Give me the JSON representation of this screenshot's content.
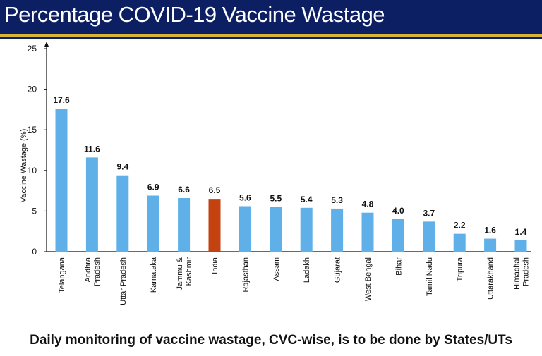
{
  "header": {
    "title": "Percentage COVID-19 Vaccine Wastage"
  },
  "footer": {
    "note": "Daily monitoring of vaccine wastage, CVC-wise, is to be done by States/UTs"
  },
  "colors": {
    "bar": "#5fb0e8",
    "highlight": "#c4420f",
    "header_bg": "#0d1f63",
    "header_rule": "#d9b43a"
  },
  "chart_data": {
    "type": "bar",
    "title": "",
    "xlabel": "",
    "ylabel": "Vaccine Wastage (%)",
    "ylim": [
      0,
      25
    ],
    "yticks": [
      0,
      5,
      10,
      15,
      20,
      25
    ],
    "grid": false,
    "highlight": "India",
    "categories": [
      "Telangana",
      "Andhra Pradesh",
      "Uttar Pradesh",
      "Karnataka",
      "Jammu & Kashmir",
      "India",
      "Rajasthan",
      "Assam",
      "Ladakh",
      "Gujarat",
      "West Bengal",
      "Bihar",
      "Tamil Nadu",
      "Tripura",
      "Uttarakhand",
      "Himachal Pradesh"
    ],
    "values": [
      17.6,
      11.6,
      9.4,
      6.9,
      6.6,
      6.5,
      5.6,
      5.5,
      5.4,
      5.3,
      4.8,
      4.0,
      3.7,
      2.2,
      1.6,
      1.4
    ],
    "labels": [
      "17.6",
      "11.6",
      "9.4",
      "6.9",
      "6.6",
      "6.5",
      "5.6",
      "5.5",
      "5.4",
      "5.3",
      "4.8",
      "4.0",
      "3.7",
      "2.2",
      "1.6",
      "1.4"
    ]
  }
}
